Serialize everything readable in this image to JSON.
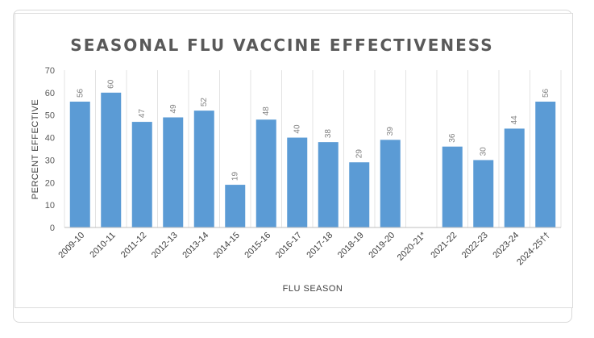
{
  "chart_data": {
    "type": "bar",
    "title": "SEASONAL FLU VACCINE EFFECTIVENESS",
    "xlabel": "FLU SEASON",
    "ylabel": "PERCENT EFFECTIVE",
    "ylim": [
      0,
      70
    ],
    "ytick_step": 10,
    "grid": "vertical-category-separators",
    "legend": "none",
    "bar_color": "#5b9bd5",
    "categories": [
      "2009-10",
      "2010-11",
      "2011-12",
      "2012-13",
      "2013-14",
      "2014-15",
      "2015-16",
      "2016-17",
      "2017-18",
      "2018-19",
      "2019-20",
      "2020-21*",
      "2021-22",
      "2022-23",
      "2023-24",
      "2024-25††"
    ],
    "values": [
      56,
      60,
      47,
      49,
      52,
      19,
      48,
      40,
      38,
      29,
      39,
      null,
      36,
      30,
      44,
      56
    ]
  }
}
